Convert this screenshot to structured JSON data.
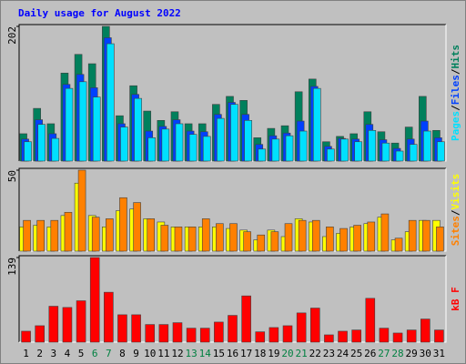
{
  "legend_separator": "/",
  "chart_data": [
    {
      "type": "bar",
      "title": "Daily usage for August 2022",
      "title_color": "#0000ff",
      "ylim": [
        0,
        202
      ],
      "yticks": [
        202
      ],
      "series": [
        {
          "name": "Hits",
          "color": "#00805c",
          "values": [
            41,
            79,
            56,
            132,
            160,
            146,
            202,
            68,
            113,
            75,
            61,
            74,
            56,
            56,
            85,
            97,
            91,
            35,
            49,
            53,
            104,
            123,
            29,
            37,
            41,
            74,
            44,
            27,
            51,
            97,
            46
          ]
        },
        {
          "name": "Files",
          "color": "#0040ff",
          "values": [
            33,
            62,
            41,
            115,
            130,
            110,
            185,
            56,
            100,
            45,
            52,
            62,
            45,
            44,
            70,
            88,
            70,
            25,
            38,
            42,
            60,
            112,
            22,
            34,
            33,
            55,
            32,
            19,
            33,
            60,
            35
          ]
        },
        {
          "name": "Pages",
          "color": "#00e0ff",
          "values": [
            29,
            55,
            34,
            109,
            119,
            96,
            176,
            51,
            94,
            35,
            48,
            56,
            40,
            37,
            64,
            85,
            61,
            18,
            33,
            38,
            45,
            109,
            18,
            33,
            29,
            46,
            27,
            15,
            25,
            45,
            29
          ]
        }
      ]
    },
    {
      "type": "bar",
      "ylim": [
        0,
        50
      ],
      "yticks": [
        50
      ],
      "series": [
        {
          "name": "Visits",
          "color": "#ffff00",
          "values": [
            15,
            16,
            15,
            22,
            42,
            22,
            15,
            25,
            26,
            20,
            18,
            15,
            15,
            15,
            15,
            14,
            13,
            7,
            13,
            9,
            20,
            18,
            9,
            11,
            15,
            17,
            21,
            7,
            12,
            19,
            19
          ]
        },
        {
          "name": "Sites",
          "color": "#ff8000",
          "values": [
            19,
            19,
            19,
            24,
            50,
            21,
            20,
            33,
            30,
            20,
            16,
            15,
            15,
            20,
            17,
            17,
            12,
            10,
            12,
            17,
            19,
            19,
            15,
            14,
            16,
            18,
            23,
            8,
            19,
            19,
            15
          ]
        }
      ]
    },
    {
      "type": "bar",
      "ylim": [
        0,
        139
      ],
      "yticks": [
        139
      ],
      "categories": [
        "1",
        "2",
        "3",
        "4",
        "5",
        "6",
        "7",
        "8",
        "9",
        "10",
        "11",
        "12",
        "13",
        "14",
        "15",
        "16",
        "17",
        "18",
        "19",
        "20",
        "21",
        "22",
        "23",
        "24",
        "25",
        "26",
        "27",
        "28",
        "29",
        "30",
        "31"
      ],
      "category_colors": [
        "#000000",
        "#000000",
        "#000000",
        "#000000",
        "#000000",
        "#008040",
        "#008040",
        "#000000",
        "#000000",
        "#000000",
        "#000000",
        "#000000",
        "#008040",
        "#008040",
        "#000000",
        "#000000",
        "#000000",
        "#000000",
        "#000000",
        "#008040",
        "#008040",
        "#000000",
        "#000000",
        "#000000",
        "#000000",
        "#000000",
        "#008040",
        "#008040",
        "#000000",
        "#000000",
        "#000000"
      ],
      "series": [
        {
          "name": "kB F",
          "color": "#ff0000",
          "values": [
            18,
            27,
            59,
            57,
            68,
            139,
            82,
            45,
            45,
            29,
            29,
            32,
            23,
            23,
            33,
            44,
            76,
            17,
            24,
            27,
            48,
            56,
            12,
            18,
            20,
            72,
            23,
            15,
            20,
            38,
            20
          ]
        }
      ]
    }
  ]
}
